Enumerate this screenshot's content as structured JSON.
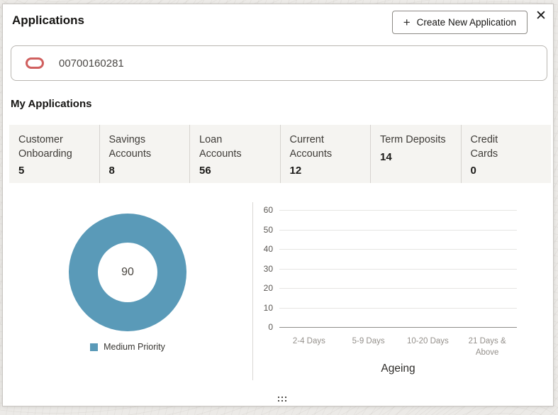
{
  "header": {
    "title": "Applications",
    "create_button_label": "Create New Application",
    "plus_icon": "+",
    "close_icon": "✕"
  },
  "search": {
    "value": "00700160281"
  },
  "section": {
    "title": "My Applications"
  },
  "stats": {
    "items": [
      {
        "label": "Customer\nOnboarding",
        "value": "5"
      },
      {
        "label": "Savings\nAccounts",
        "value": "8"
      },
      {
        "label": "Loan\nAccounts",
        "value": "56"
      },
      {
        "label": "Current\nAccounts",
        "value": "12"
      },
      {
        "label": "Term Deposits",
        "value": "14"
      },
      {
        "label": "Credit\nCards",
        "value": "0"
      }
    ]
  },
  "chart_data": [
    {
      "type": "pie",
      "subtype": "donut",
      "labels": [
        "Medium Priority"
      ],
      "values": [
        90
      ],
      "center_label": "90",
      "color": "#5a9ab8",
      "legend_position": "bottom"
    },
    {
      "type": "bar",
      "title": "",
      "xlabel": "Ageing",
      "ylabel": "",
      "categories": [
        "2-4 Days",
        "5-9 Days",
        "10-20 Days",
        "21 Days & Above"
      ],
      "values": [
        0,
        0,
        0,
        0
      ],
      "ylim": [
        0,
        60
      ],
      "yticks": [
        "60",
        "50",
        "40",
        "30",
        "20",
        "10",
        "0"
      ],
      "grid": true
    }
  ]
}
